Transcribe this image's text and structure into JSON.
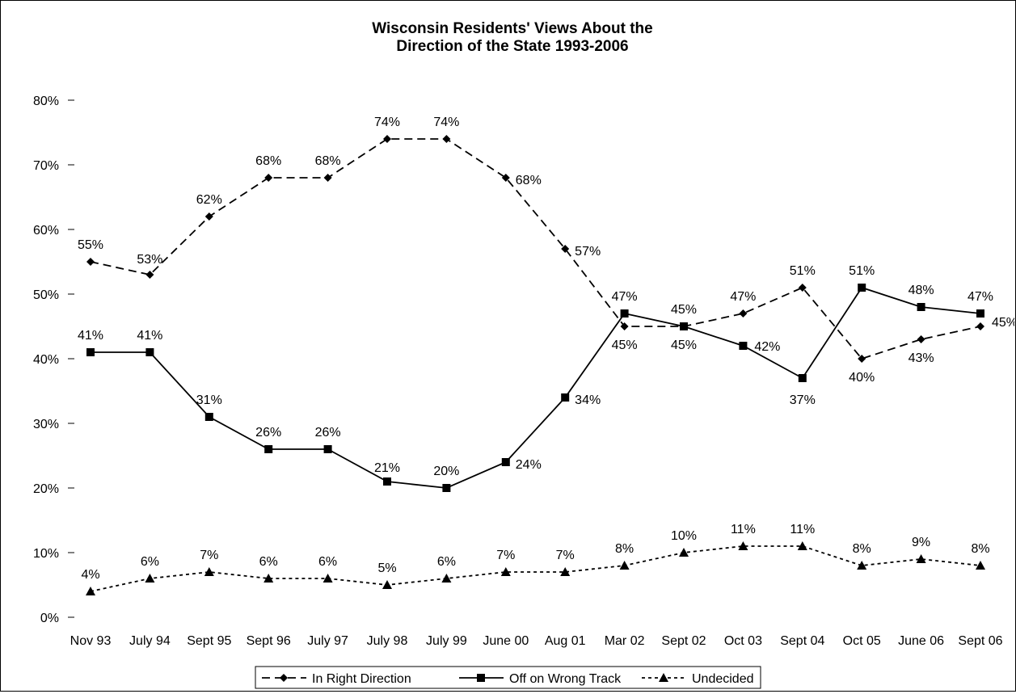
{
  "chart_data": {
    "type": "line",
    "title": "Wisconsin Residents' Views About the",
    "subtitle": "Direction of the State 1993-2006",
    "xlabel": "",
    "ylabel": "",
    "ylim": [
      0,
      80
    ],
    "yticks": [
      0,
      10,
      20,
      30,
      40,
      50,
      60,
      70,
      80
    ],
    "ytick_labels": [
      "0%",
      "10%",
      "20%",
      "30%",
      "40%",
      "50%",
      "60%",
      "70%",
      "80%"
    ],
    "grid": false,
    "legend_position": "bottom",
    "categories": [
      "Nov 93",
      "July 94",
      "Sept 95",
      "Sept 96",
      "July 97",
      "July 98",
      "July 99",
      "June 00",
      "Aug 01",
      "Mar 02",
      "Sept 02",
      "Oct 03",
      "Sept 04",
      "Oct 05",
      "June 06",
      "Sept 06"
    ],
    "series": [
      {
        "name": "In Right Direction",
        "marker": "diamond",
        "line_style": "dashed",
        "color": "#000000",
        "values": [
          55,
          53,
          62,
          68,
          68,
          74,
          74,
          68,
          57,
          45,
          45,
          47,
          51,
          40,
          43,
          45
        ],
        "labels": [
          "55%",
          "53%",
          "62%",
          "68%",
          "68%",
          "74%",
          "74%",
          "68%",
          "57%",
          "45%",
          "45%",
          "47%",
          "51%",
          "40%",
          "43%",
          "45%"
        ]
      },
      {
        "name": "Off on Wrong Track",
        "marker": "square",
        "line_style": "solid",
        "color": "#000000",
        "values": [
          41,
          41,
          31,
          26,
          26,
          21,
          20,
          24,
          34,
          47,
          45,
          42,
          37,
          51,
          48,
          47
        ],
        "labels": [
          "41%",
          "41%",
          "31%",
          "26%",
          "26%",
          "21%",
          "20%",
          "24%",
          "34%",
          "47%",
          "45%",
          "42%",
          "37%",
          "51%",
          "48%",
          "47%"
        ]
      },
      {
        "name": "Undecided",
        "marker": "triangle",
        "line_style": "dotted",
        "color": "#000000",
        "values": [
          4,
          6,
          7,
          6,
          6,
          5,
          6,
          7,
          7,
          8,
          10,
          11,
          11,
          8,
          9,
          8
        ],
        "labels": [
          "4%",
          "6%",
          "7%",
          "6%",
          "6%",
          "5%",
          "6%",
          "7%",
          "7%",
          "8%",
          "10%",
          "11%",
          "11%",
          "8%",
          "9%",
          "8%"
        ]
      }
    ]
  }
}
